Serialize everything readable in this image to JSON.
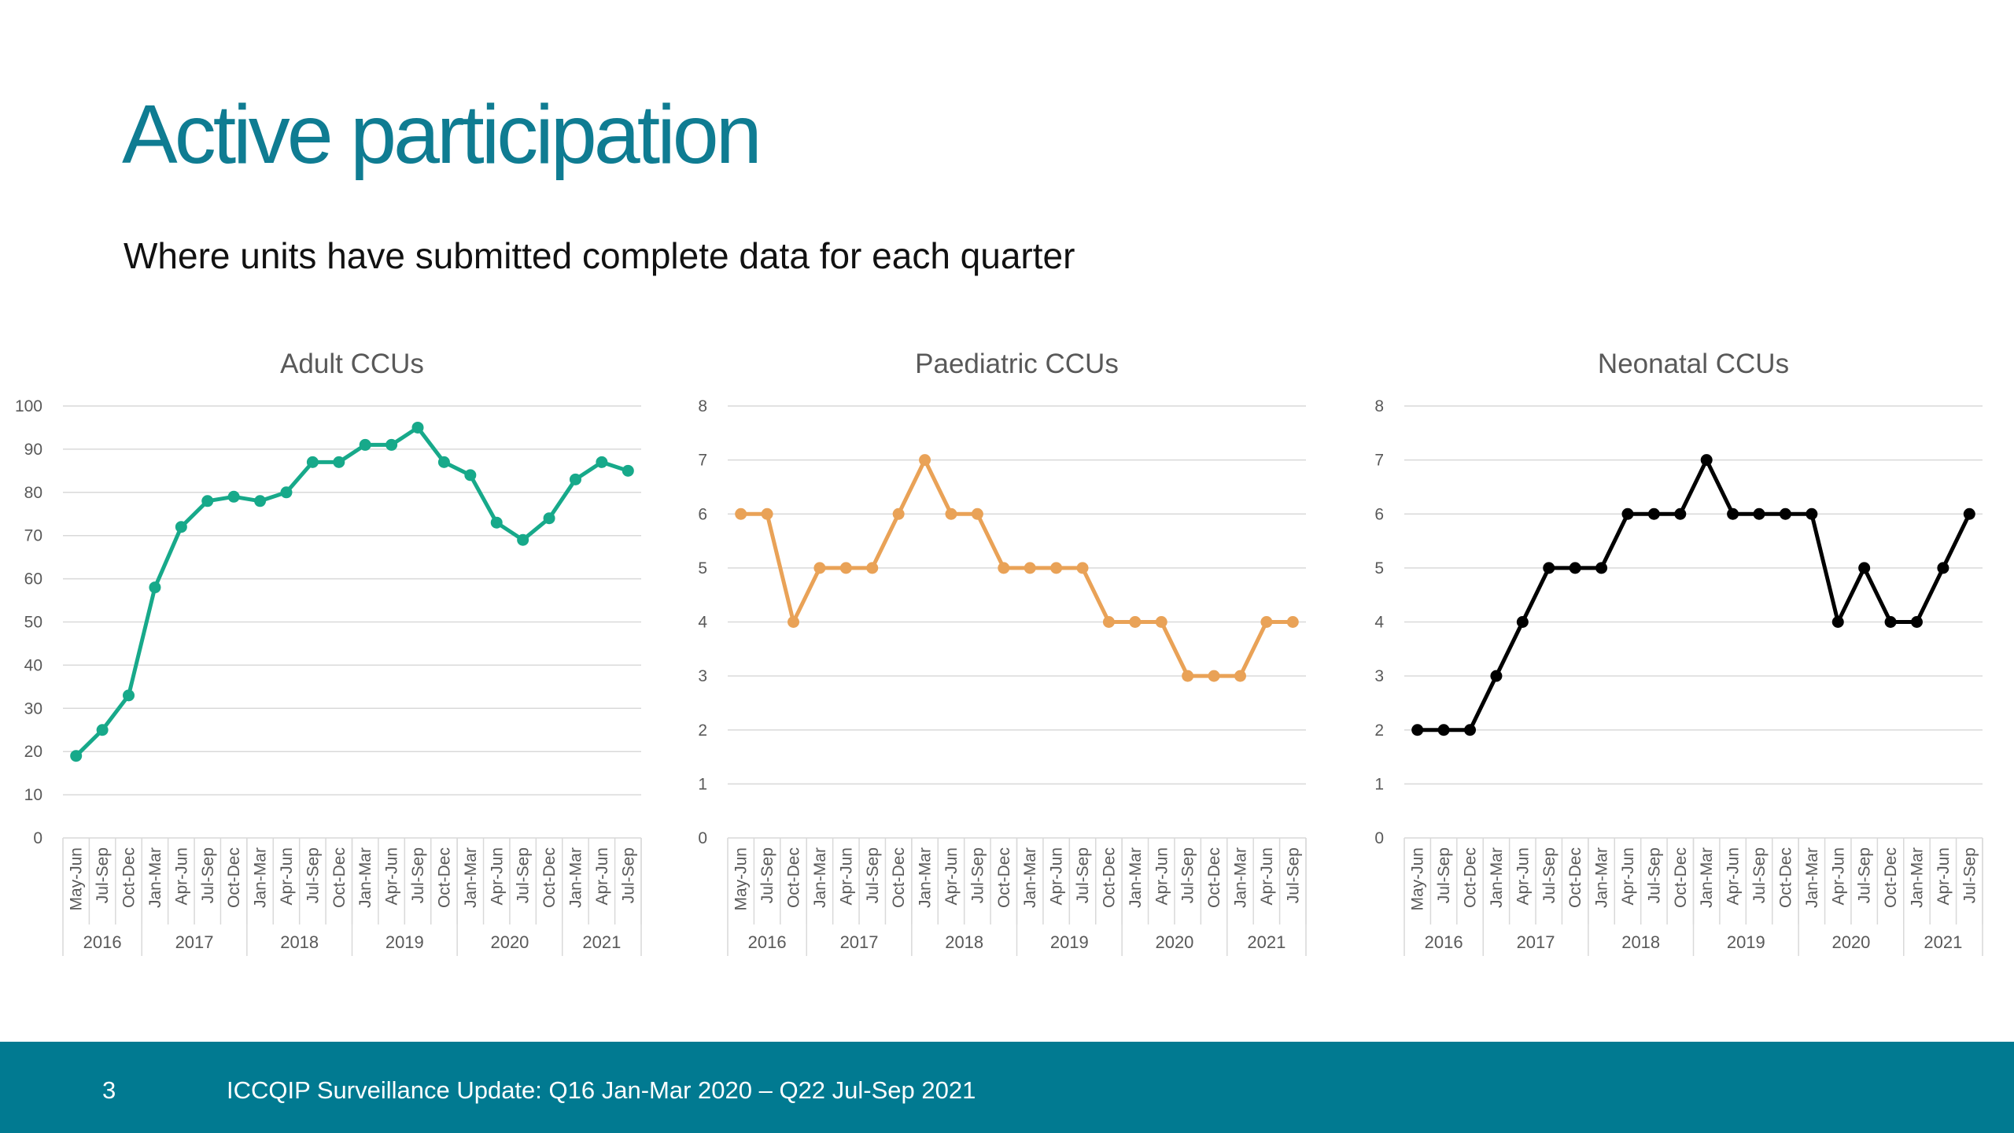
{
  "slide": {
    "title": "Active participation",
    "subtitle": "Where units have submitted complete data for each quarter"
  },
  "footer": {
    "page_number": "3",
    "text": "ICCQIP Surveillance Update: Q16 Jan-Mar 2020 – Q22 Jul-Sep 2021",
    "background": "#017a91"
  },
  "quarters": [
    "May-Jun",
    "Jul-Sep",
    "Oct-Dec",
    "Jan-Mar",
    "Apr-Jun",
    "Jul-Sep",
    "Oct-Dec",
    "Jan-Mar",
    "Apr-Jun",
    "Jul-Sep",
    "Oct-Dec",
    "Jan-Mar",
    "Apr-Jun",
    "Jul-Sep",
    "Oct-Dec",
    "Jan-Mar",
    "Apr-Jun",
    "Jul-Sep",
    "Oct-Dec",
    "Jan-Mar",
    "Apr-Jun",
    "Jul-Sep"
  ],
  "years": [
    {
      "label": "2016",
      "span": 3
    },
    {
      "label": "2017",
      "span": 4
    },
    {
      "label": "2018",
      "span": 4
    },
    {
      "label": "2019",
      "span": 4
    },
    {
      "label": "2020",
      "span": 4
    },
    {
      "label": "2021",
      "span": 3
    }
  ],
  "chart_data": [
    {
      "type": "line",
      "title": "Adult CCUs",
      "xlabel": "",
      "ylabel": "",
      "ylim": [
        0,
        100
      ],
      "yticks": [
        0,
        10,
        20,
        30,
        40,
        50,
        60,
        70,
        80,
        90,
        100
      ],
      "grid": true,
      "color": "#17a98a",
      "series": [
        {
          "values": [
            19,
            25,
            33,
            58,
            72,
            78,
            79,
            78,
            80,
            87,
            87,
            91,
            91,
            95,
            87,
            84,
            73,
            69,
            74,
            83,
            87,
            85
          ]
        }
      ]
    },
    {
      "type": "line",
      "title": "Paediatric CCUs",
      "xlabel": "",
      "ylabel": "",
      "ylim": [
        0,
        8
      ],
      "yticks": [
        0,
        1,
        2,
        3,
        4,
        5,
        6,
        7,
        8
      ],
      "grid": true,
      "color": "#e9a257",
      "series": [
        {
          "values": [
            6,
            6,
            4,
            5,
            5,
            5,
            6,
            7,
            6,
            6,
            5,
            5,
            5,
            5,
            4,
            4,
            4,
            3,
            3,
            3,
            4,
            4
          ]
        }
      ]
    },
    {
      "type": "line",
      "title": "Neonatal CCUs",
      "xlabel": "",
      "ylabel": "",
      "ylim": [
        0,
        8
      ],
      "yticks": [
        0,
        1,
        2,
        3,
        4,
        5,
        6,
        7,
        8
      ],
      "grid": true,
      "color": "#000000",
      "series": [
        {
          "values": [
            2,
            2,
            2,
            3,
            4,
            5,
            5,
            5,
            6,
            6,
            6,
            7,
            6,
            6,
            6,
            6,
            4,
            5,
            4,
            4,
            5,
            6
          ]
        }
      ]
    }
  ]
}
